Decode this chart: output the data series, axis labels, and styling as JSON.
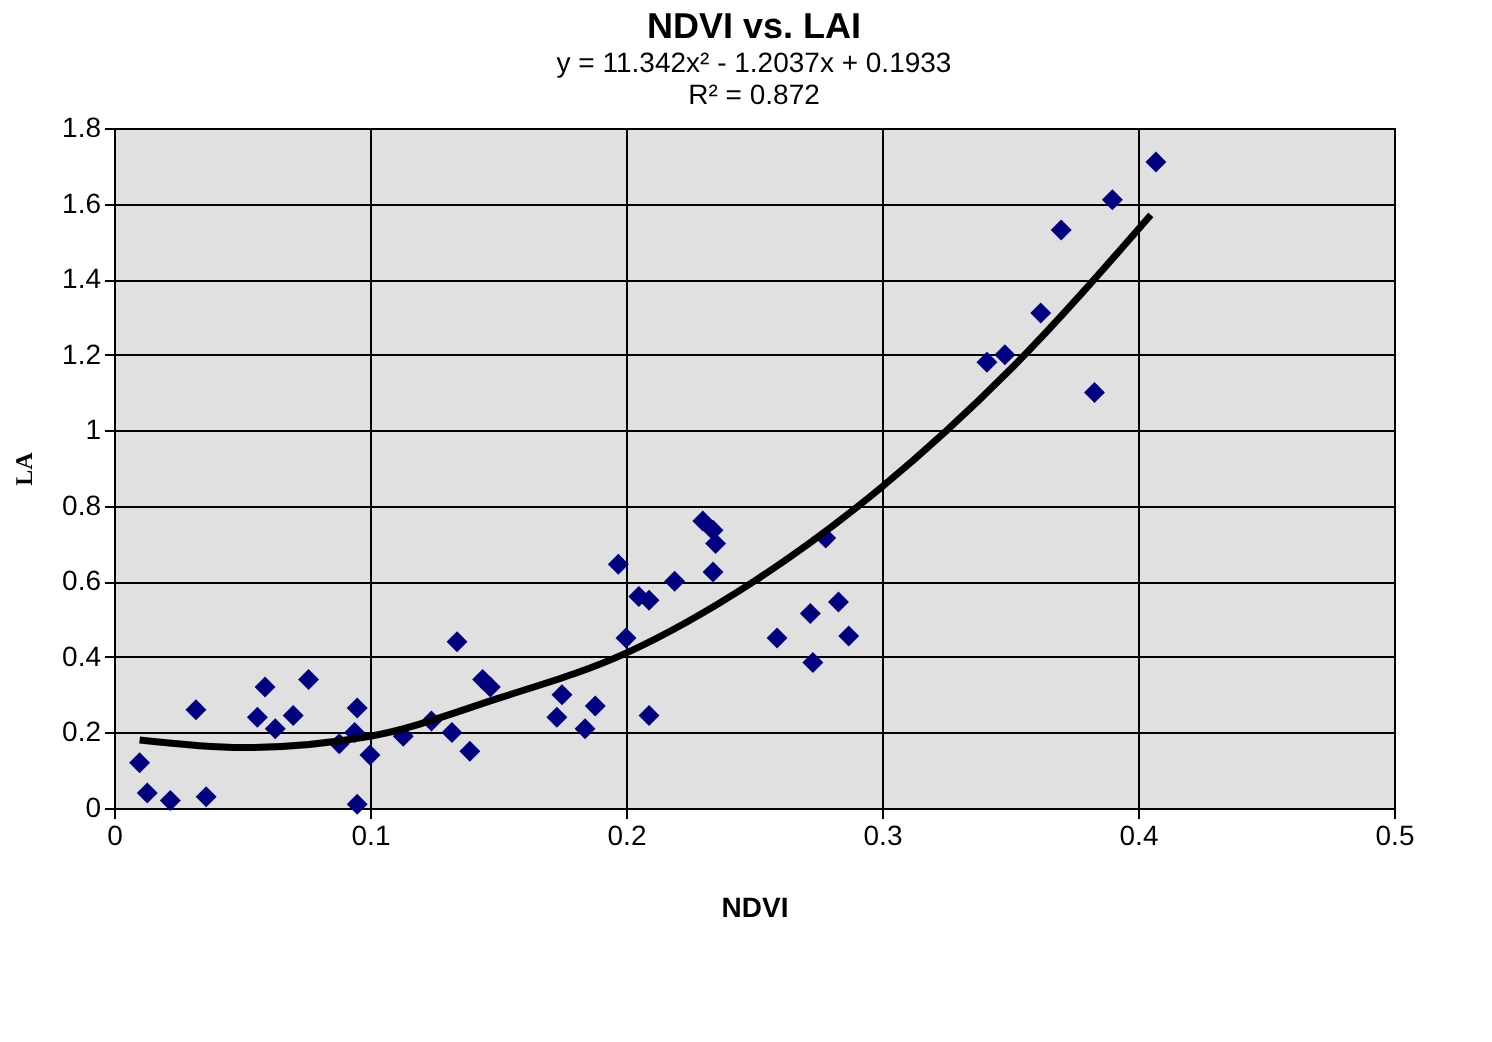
{
  "chart_data": {
    "type": "scatter",
    "title": "NDVI vs. LAI",
    "annotations": [
      "y = 11.342x² - 1.2037x + 0.1933",
      "R² = 0.872"
    ],
    "xlabel": "NDVI",
    "ylabel": "LA",
    "xlim": [
      0,
      0.5
    ],
    "xticks": [
      0,
      0.1,
      0.2,
      0.3,
      0.4,
      0.5
    ],
    "ylim": [
      0,
      1.8
    ],
    "yticks": [
      0,
      0.2,
      0.4,
      0.6,
      0.8,
      1,
      1.2,
      1.4,
      1.6,
      1.8
    ],
    "grid": true,
    "legend": false,
    "series": [
      {
        "color": "#000080",
        "marker": "diamond",
        "x": [
          0.01,
          0.013,
          0.022,
          0.032,
          0.036,
          0.059,
          0.056,
          0.063,
          0.07,
          0.076,
          0.088,
          0.095,
          0.095,
          0.094,
          0.1,
          0.113,
          0.124,
          0.134,
          0.132,
          0.139,
          0.144,
          0.147,
          0.173,
          0.175,
          0.184,
          0.188,
          0.197,
          0.2,
          0.205,
          0.209,
          0.219,
          0.23,
          0.234,
          0.235,
          0.234,
          0.278,
          0.259,
          0.272,
          0.283,
          0.287,
          0.273,
          0.209,
          0.407,
          0.39,
          0.37,
          0.362,
          0.348,
          0.341,
          0.383
        ],
        "values": [
          0.12,
          0.04,
          0.02,
          0.26,
          0.03,
          0.32,
          0.24,
          0.21,
          0.245,
          0.34,
          0.17,
          0.265,
          0.01,
          0.2,
          0.14,
          0.19,
          0.23,
          0.44,
          0.2,
          0.15,
          0.34,
          0.32,
          0.24,
          0.3,
          0.21,
          0.27,
          0.645,
          0.45,
          0.56,
          0.55,
          0.6,
          0.76,
          0.735,
          0.7,
          0.625,
          0.715,
          0.45,
          0.515,
          0.545,
          0.455,
          0.385,
          0.245,
          1.71,
          1.61,
          1.53,
          1.31,
          1.2,
          1.18,
          1.1
        ]
      },
      {
        "type": "line",
        "color": "#000000",
        "line_style": "solid",
        "marker": "none",
        "x": [
          0.01,
          0.05,
          0.1,
          0.15,
          0.2,
          0.25,
          0.3,
          0.35,
          0.405
        ],
        "values": [
          0.18,
          0.16,
          0.19,
          0.29,
          0.41,
          0.6,
          0.85,
          1.16,
          1.57
        ]
      }
    ]
  }
}
